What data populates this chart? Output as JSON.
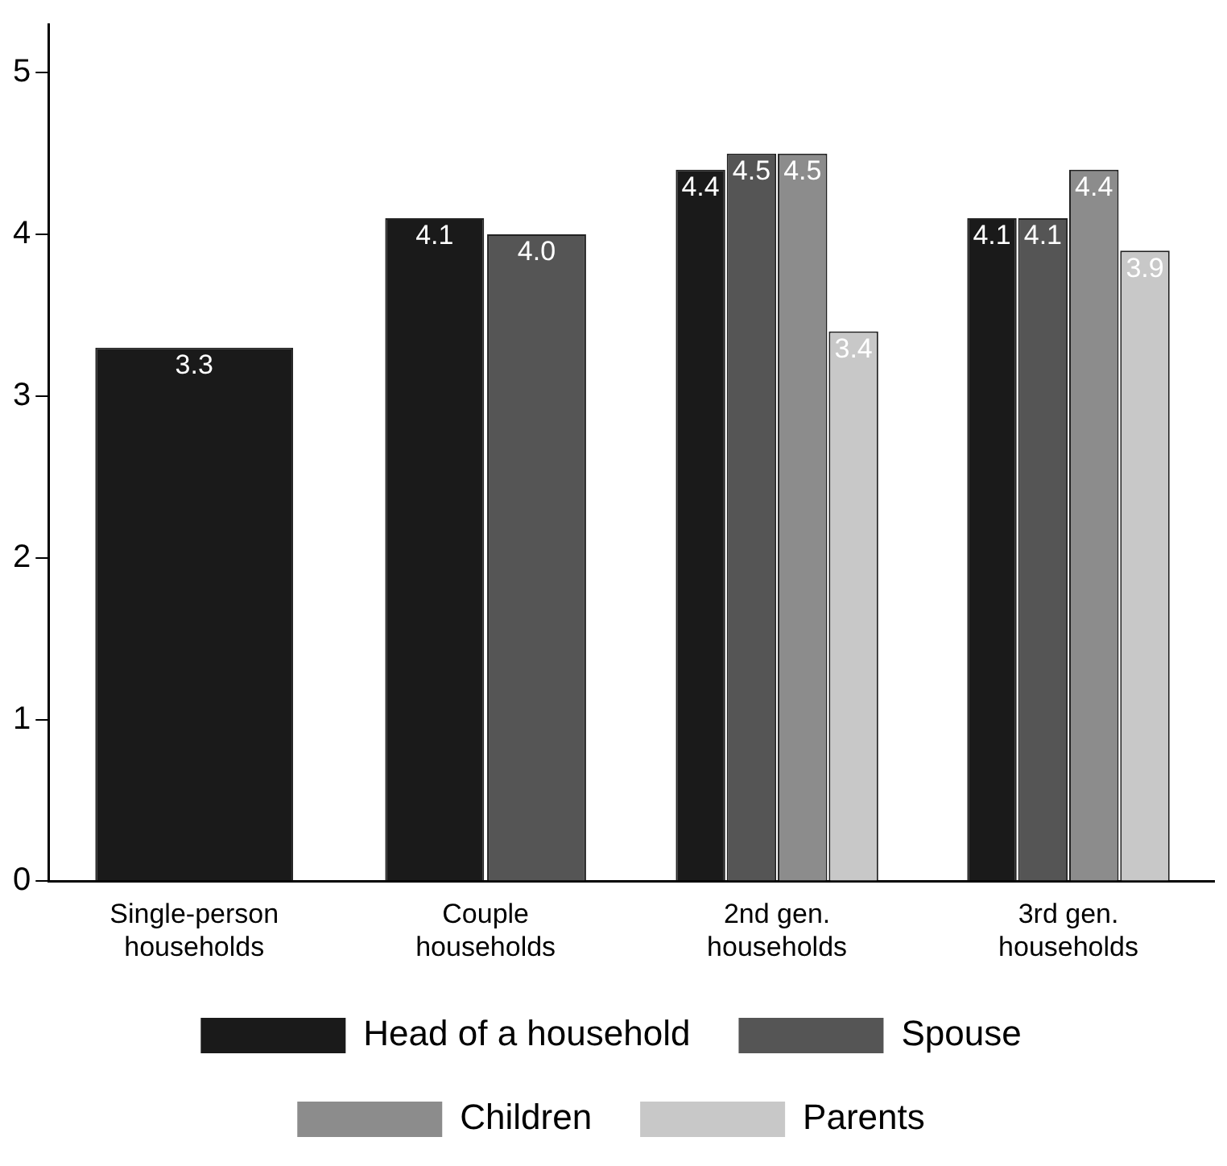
{
  "chart_data": {
    "type": "bar",
    "categories": [
      "Single-person households",
      "Couple households",
      "2nd gen. households",
      "3rd gen. households"
    ],
    "series": [
      {
        "name": "Head of a household",
        "color": "#1a1a1a",
        "values": [
          3.3,
          4.1,
          4.4,
          4.1
        ],
        "value_labels": [
          "3.3",
          "4.1",
          "4.4",
          "4.1"
        ]
      },
      {
        "name": "Spouse",
        "color": "#555555",
        "values": [
          null,
          4.0,
          4.5,
          4.1
        ],
        "value_labels": [
          null,
          "4.0",
          "4.5",
          "4.1"
        ]
      },
      {
        "name": "Children",
        "color": "#8c8c8c",
        "values": [
          null,
          null,
          4.5,
          4.4
        ],
        "value_labels": [
          null,
          null,
          "4.5",
          "4.4"
        ]
      },
      {
        "name": "Parents",
        "color": "#c8c8c8",
        "values": [
          null,
          null,
          3.4,
          3.9
        ],
        "value_labels": [
          null,
          null,
          "3.4",
          "3.9"
        ]
      }
    ],
    "ylim": [
      0,
      5.3
    ],
    "yticks": [
      0,
      1,
      2,
      3,
      4,
      5
    ],
    "grid": false,
    "legend": "bottom"
  }
}
